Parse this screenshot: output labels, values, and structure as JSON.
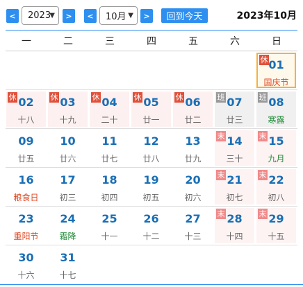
{
  "toolbar": {
    "prev_year": "<",
    "year_value": "2023",
    "next_year": ">",
    "prev_month": "<",
    "month_value": "10月",
    "next_month": ">",
    "today_button": "回到今天",
    "heading": "2023年10月"
  },
  "weekdays": [
    "一",
    "二",
    "三",
    "四",
    "五",
    "六",
    "日"
  ],
  "weeks": [
    [
      null,
      null,
      null,
      null,
      null,
      null,
      {
        "day": "01",
        "lunar": "国庆节",
        "tag": "休",
        "style": "holiday",
        "lunar_color": "red",
        "today": true
      }
    ],
    [
      {
        "day": "02",
        "lunar": "十八",
        "tag": "休",
        "style": "holiday"
      },
      {
        "day": "03",
        "lunar": "十九",
        "tag": "休",
        "style": "holiday"
      },
      {
        "day": "04",
        "lunar": "二十",
        "tag": "休",
        "style": "holiday"
      },
      {
        "day": "05",
        "lunar": "廿一",
        "tag": "休",
        "style": "holiday"
      },
      {
        "day": "06",
        "lunar": "廿二",
        "tag": "休",
        "style": "holiday"
      },
      {
        "day": "07",
        "lunar": "廿三",
        "tag": "班",
        "style": "workday"
      },
      {
        "day": "08",
        "lunar": "寒露",
        "tag": "班",
        "style": "workday",
        "lunar_color": "green"
      }
    ],
    [
      {
        "day": "09",
        "lunar": "廿五"
      },
      {
        "day": "10",
        "lunar": "廿六"
      },
      {
        "day": "11",
        "lunar": "廿七"
      },
      {
        "day": "12",
        "lunar": "廿八"
      },
      {
        "day": "13",
        "lunar": "廿九"
      },
      {
        "day": "14",
        "lunar": "三十",
        "tag": "末",
        "style": "rest"
      },
      {
        "day": "15",
        "lunar": "九月",
        "tag": "末",
        "style": "rest",
        "lunar_color": "green"
      }
    ],
    [
      {
        "day": "16",
        "lunar": "粮食日",
        "lunar_color": "red"
      },
      {
        "day": "17",
        "lunar": "初三"
      },
      {
        "day": "18",
        "lunar": "初四"
      },
      {
        "day": "19",
        "lunar": "初五"
      },
      {
        "day": "20",
        "lunar": "初六"
      },
      {
        "day": "21",
        "lunar": "初七",
        "tag": "末",
        "style": "rest"
      },
      {
        "day": "22",
        "lunar": "初八",
        "tag": "末",
        "style": "rest"
      }
    ],
    [
      {
        "day": "23",
        "lunar": "重阳节",
        "lunar_color": "red"
      },
      {
        "day": "24",
        "lunar": "霜降",
        "lunar_color": "green"
      },
      {
        "day": "25",
        "lunar": "十一"
      },
      {
        "day": "26",
        "lunar": "十二"
      },
      {
        "day": "27",
        "lunar": "十三"
      },
      {
        "day": "28",
        "lunar": "十四",
        "tag": "末",
        "style": "rest"
      },
      {
        "day": "29",
        "lunar": "十五",
        "tag": "末",
        "style": "rest"
      }
    ],
    [
      {
        "day": "30",
        "lunar": "十六"
      },
      {
        "day": "31",
        "lunar": "十七"
      },
      null,
      null,
      null,
      null,
      null
    ]
  ],
  "colors": {
    "accent": "#2d8ff0",
    "day_number": "#1a6fb5",
    "holiday_red": "#e0451f",
    "solar_term_green": "#1e8a36",
    "today_border": "#f5b042"
  }
}
